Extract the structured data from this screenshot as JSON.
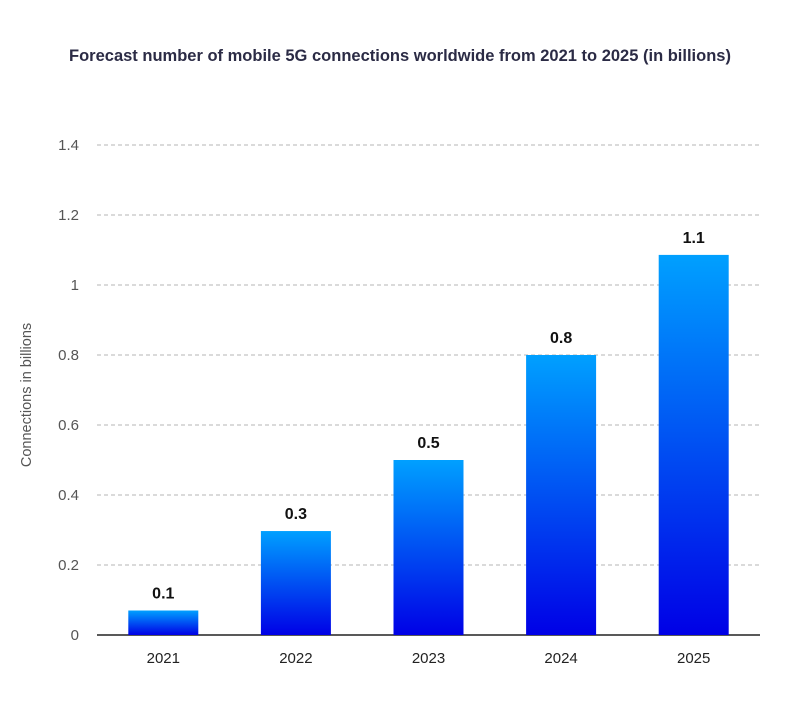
{
  "chart_data": {
    "type": "bar",
    "title": "Forecast number of mobile 5G connections worldwide from 2021 to 2025 (in billions)",
    "xlabel": "",
    "ylabel": "Connections in billions",
    "categories": [
      "2021",
      "2022",
      "2023",
      "2024",
      "2025"
    ],
    "values": [
      0.07,
      0.297,
      0.5,
      0.8,
      1.086
    ],
    "data_labels": [
      "0.1",
      "0.3",
      "0.5",
      "0.8",
      "1.1"
    ],
    "ylim": [
      0,
      1.4
    ],
    "yticks": [
      "0",
      "0.2",
      "0.4",
      "0.6",
      "0.8",
      "1",
      "1.2",
      "1.4"
    ],
    "grid": true,
    "gradient_colors": {
      "top": "#00a0ff",
      "bottom": "#0000e6"
    }
  }
}
